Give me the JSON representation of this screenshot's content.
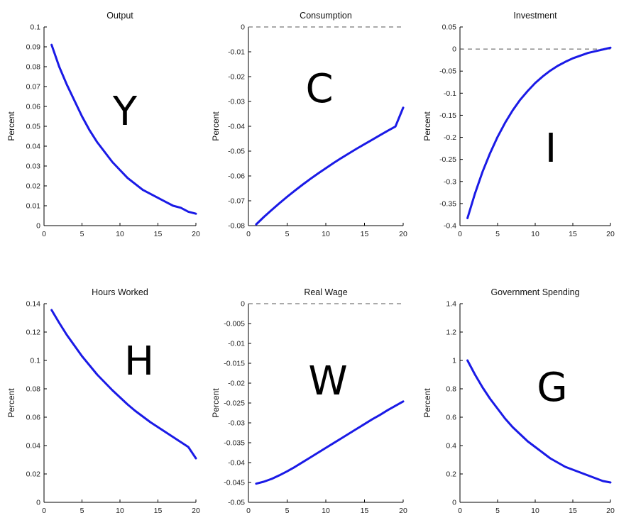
{
  "chart_data": [
    {
      "type": "line",
      "title": "Output",
      "ylabel": "Percent",
      "xlabel": "",
      "annotation": "Y",
      "xlim": [
        0,
        20
      ],
      "ylim": [
        0,
        0.1
      ],
      "xticks": [
        0,
        5,
        10,
        15,
        20
      ],
      "yticks": [
        0,
        0.01,
        0.02,
        0.03,
        0.04,
        0.05,
        0.06,
        0.07,
        0.08,
        0.09,
        0.1
      ],
      "ytick_labels": [
        "0",
        "0.01",
        "0.02",
        "0.03",
        "0.04",
        "0.05",
        "0.06",
        "0.07",
        "0.08",
        "0.09",
        "0.1"
      ],
      "zero_line": false,
      "series": [
        {
          "x": [
            1,
            2,
            3,
            4,
            5,
            6,
            7,
            8,
            9,
            10,
            11,
            12,
            13,
            14,
            15,
            16,
            17,
            18,
            19,
            20
          ],
          "values": [
            0.091,
            0.08,
            0.071,
            0.063,
            0.055,
            0.048,
            0.042,
            0.037,
            0.032,
            0.028,
            0.024,
            0.021,
            0.018,
            0.016,
            0.014,
            0.012,
            0.01,
            0.009,
            0.007,
            0.006
          ]
        }
      ]
    },
    {
      "type": "line",
      "title": "Consumption",
      "ylabel": "Percent",
      "xlabel": "",
      "annotation": "C",
      "xlim": [
        0,
        20
      ],
      "ylim": [
        -0.08,
        0
      ],
      "xticks": [
        0,
        5,
        10,
        15,
        20
      ],
      "yticks": [
        -0.08,
        -0.07,
        -0.06,
        -0.05,
        -0.04,
        -0.03,
        -0.02,
        -0.01,
        0
      ],
      "ytick_labels": [
        "-0.08",
        "-0.07",
        "-0.06",
        "-0.05",
        "-0.04",
        "-0.03",
        "-0.02",
        "-0.01",
        "0"
      ],
      "zero_line": true,
      "series": [
        {
          "x": [
            1,
            2,
            3,
            4,
            5,
            6,
            7,
            8,
            9,
            10,
            11,
            12,
            13,
            14,
            15,
            16,
            17,
            18,
            19,
            20
          ],
          "values": [
            -0.0795,
            -0.0765,
            -0.0737,
            -0.071,
            -0.0684,
            -0.0659,
            -0.0635,
            -0.0612,
            -0.059,
            -0.0569,
            -0.0548,
            -0.0528,
            -0.0509,
            -0.049,
            -0.0472,
            -0.0454,
            -0.0436,
            -0.0418,
            -0.0401,
            -0.0325
          ]
        }
      ]
    },
    {
      "type": "line",
      "title": "Investment",
      "ylabel": "Percent",
      "xlabel": "",
      "annotation": "I",
      "xlim": [
        0,
        20
      ],
      "ylim": [
        -0.4,
        0.05
      ],
      "xticks": [
        0,
        5,
        10,
        15,
        20
      ],
      "yticks": [
        -0.4,
        -0.35,
        -0.3,
        -0.25,
        -0.2,
        -0.15,
        -0.1,
        -0.05,
        0,
        0.05
      ],
      "ytick_labels": [
        "-0.4",
        "-0.35",
        "-0.3",
        "-0.25",
        "-0.2",
        "-0.15",
        "-0.1",
        "-0.05",
        "0",
        "0.05"
      ],
      "zero_line": true,
      "series": [
        {
          "x": [
            1,
            2,
            3,
            4,
            5,
            6,
            7,
            8,
            9,
            10,
            11,
            12,
            13,
            14,
            15,
            16,
            17,
            18,
            19,
            20
          ],
          "values": [
            -0.383,
            -0.327,
            -0.278,
            -0.236,
            -0.199,
            -0.167,
            -0.139,
            -0.115,
            -0.095,
            -0.077,
            -0.062,
            -0.049,
            -0.038,
            -0.029,
            -0.021,
            -0.015,
            -0.009,
            -0.005,
            -0.001,
            0.003
          ]
        }
      ]
    },
    {
      "type": "line",
      "title": "Hours Worked",
      "ylabel": "Percent",
      "xlabel": "",
      "annotation": "H",
      "xlim": [
        0,
        20
      ],
      "ylim": [
        0,
        0.14
      ],
      "xticks": [
        0,
        5,
        10,
        15,
        20
      ],
      "yticks": [
        0,
        0.02,
        0.04,
        0.06,
        0.08,
        0.1,
        0.12,
        0.14
      ],
      "ytick_labels": [
        "0",
        "0.02",
        "0.04",
        "0.06",
        "0.08",
        "0.1",
        "0.12",
        "0.14"
      ],
      "zero_line": false,
      "series": [
        {
          "x": [
            1,
            2,
            3,
            4,
            5,
            6,
            7,
            8,
            9,
            10,
            11,
            12,
            13,
            14,
            15,
            16,
            17,
            18,
            19,
            20
          ],
          "values": [
            0.1355,
            0.1265,
            0.118,
            0.1105,
            0.103,
            0.0965,
            0.09,
            0.0845,
            0.079,
            0.074,
            0.069,
            0.0645,
            0.0605,
            0.0565,
            0.053,
            0.0495,
            0.046,
            0.0425,
            0.039,
            0.031
          ]
        }
      ]
    },
    {
      "type": "line",
      "title": "Real Wage",
      "ylabel": "Percent",
      "xlabel": "",
      "annotation": "W",
      "xlim": [
        0,
        20
      ],
      "ylim": [
        -0.05,
        0
      ],
      "xticks": [
        0,
        5,
        10,
        15,
        20
      ],
      "yticks": [
        -0.05,
        -0.045,
        -0.04,
        -0.035,
        -0.03,
        -0.025,
        -0.02,
        -0.015,
        -0.01,
        -0.005,
        0
      ],
      "ytick_labels": [
        "-0.05",
        "-0.045",
        "-0.04",
        "-0.035",
        "-0.03",
        "-0.025",
        "-0.02",
        "-0.015",
        "-0.01",
        "-0.005",
        "0"
      ],
      "zero_line": true,
      "series": [
        {
          "x": [
            1,
            2,
            3,
            4,
            5,
            6,
            7,
            8,
            9,
            10,
            11,
            12,
            13,
            14,
            15,
            16,
            17,
            18,
            19,
            20
          ],
          "values": [
            -0.0453,
            -0.0448,
            -0.0441,
            -0.0432,
            -0.0422,
            -0.0411,
            -0.0399,
            -0.0387,
            -0.0375,
            -0.0363,
            -0.0351,
            -0.0339,
            -0.0327,
            -0.0315,
            -0.0303,
            -0.0291,
            -0.028,
            -0.0268,
            -0.0257,
            -0.0246
          ]
        }
      ]
    },
    {
      "type": "line",
      "title": "Government Spending",
      "ylabel": "Percent",
      "xlabel": "",
      "annotation": "G",
      "xlim": [
        0,
        20
      ],
      "ylim": [
        0,
        1.4
      ],
      "xticks": [
        0,
        5,
        10,
        15,
        20
      ],
      "yticks": [
        0,
        0.2,
        0.4,
        0.6,
        0.8,
        1,
        1.2,
        1.4
      ],
      "ytick_labels": [
        "0",
        "0.2",
        "0.4",
        "0.6",
        "0.8",
        "1",
        "1.2",
        "1.4"
      ],
      "zero_line": false,
      "series": [
        {
          "x": [
            1,
            2,
            3,
            4,
            5,
            6,
            7,
            8,
            9,
            10,
            11,
            12,
            13,
            14,
            15,
            16,
            17,
            18,
            19,
            20
          ],
          "values": [
            1.0,
            0.9,
            0.81,
            0.73,
            0.66,
            0.59,
            0.53,
            0.48,
            0.43,
            0.39,
            0.35,
            0.31,
            0.28,
            0.25,
            0.23,
            0.21,
            0.19,
            0.17,
            0.15,
            0.14
          ]
        }
      ]
    }
  ],
  "colors": {
    "line": "#1a1ae6",
    "axis": "#000000",
    "zero_line": "#555555"
  }
}
